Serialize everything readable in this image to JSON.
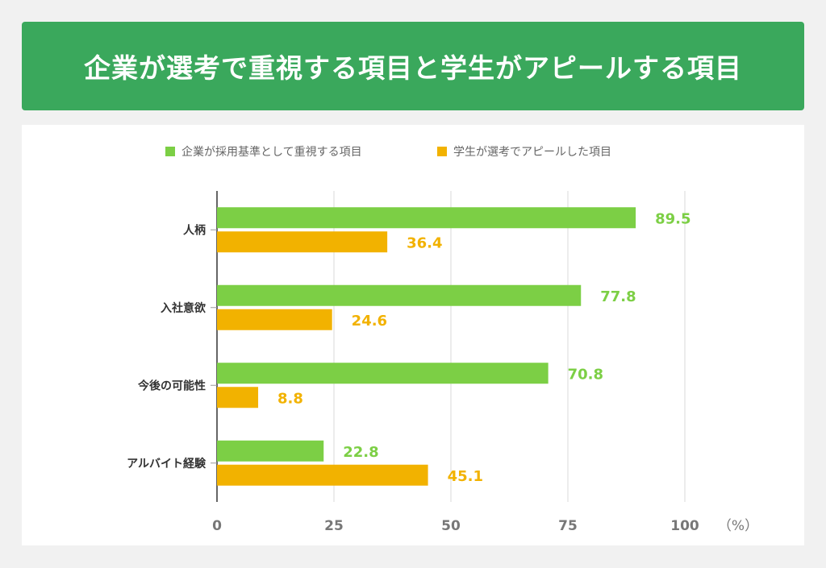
{
  "header": {
    "title": "企業が選考で重視する項目と学生がアピールする項目",
    "background_color": "#3aa85c"
  },
  "chart_data": {
    "type": "bar",
    "orientation": "horizontal",
    "categories": [
      "人柄",
      "入社意欲",
      "今後の可能性",
      "アルバイト経験"
    ],
    "series": [
      {
        "name": "企業が採用基準として重視する項目",
        "values": [
          89.5,
          77.8,
          70.8,
          22.8
        ],
        "color": "#7ccf45"
      },
      {
        "name": "学生が選考でアピールした項目",
        "values": [
          36.4,
          24.6,
          8.8,
          45.1
        ],
        "color": "#f2b200"
      }
    ],
    "xlim": [
      0,
      100
    ],
    "xticks": [
      0,
      25,
      50,
      75,
      100
    ],
    "unit": "（%）",
    "grid": true,
    "legend_position": "top-center"
  }
}
